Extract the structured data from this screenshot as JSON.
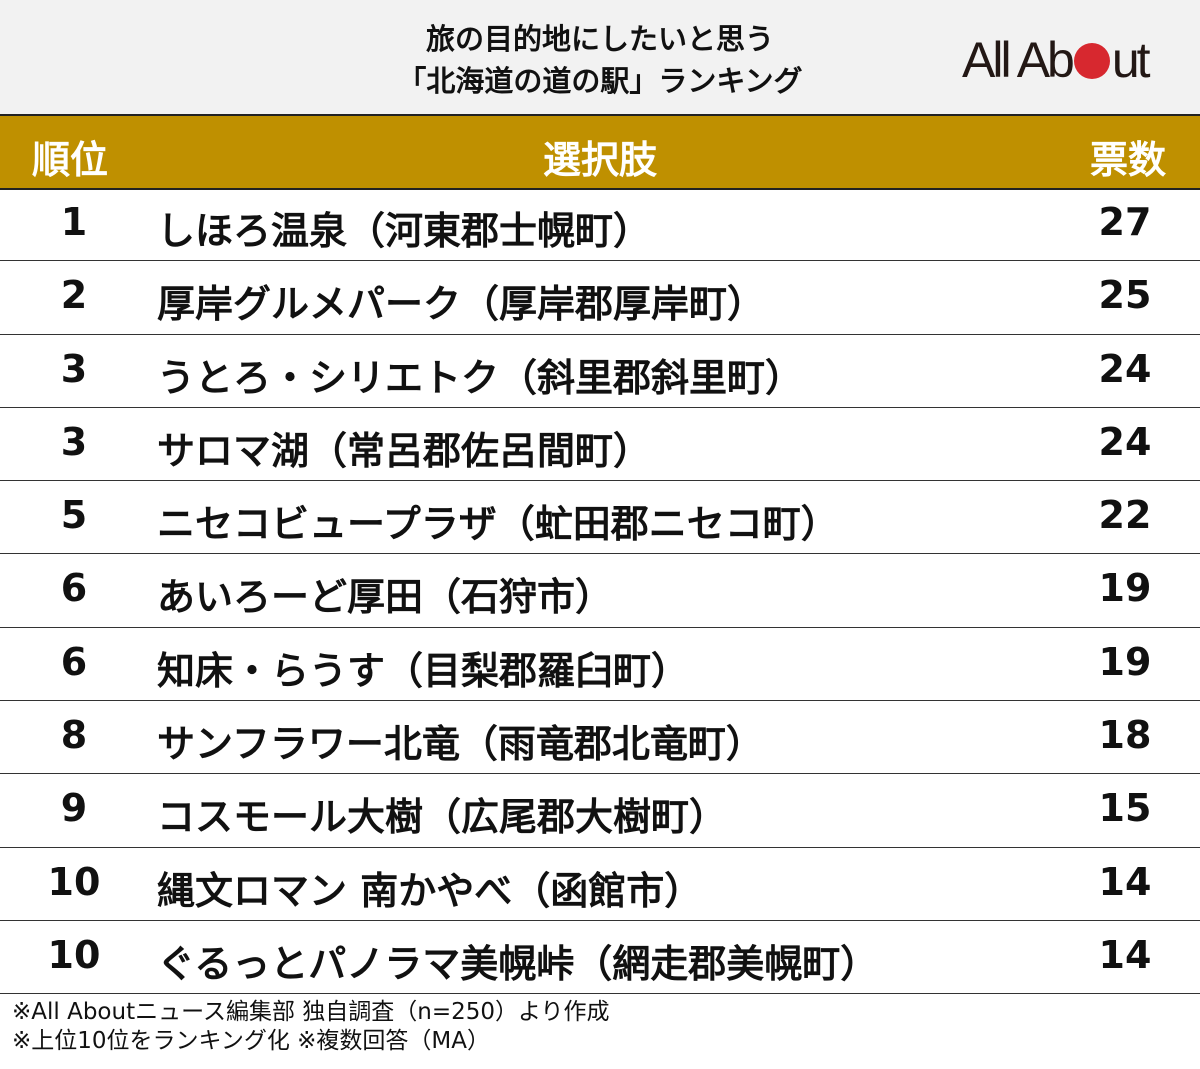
{
  "header": {
    "title_line1": "旅の目的地にしたいと思う",
    "title_line2": "「北海道の道の駅」ランキング",
    "logo_text_left": "All Ab",
    "logo_text_right": "ut",
    "logo": "All About"
  },
  "colors": {
    "header_band": "#bf9000",
    "logo_dot": "#d7282f",
    "top_bg": "#f2f2f2"
  },
  "chart_data": {
    "type": "table",
    "columns": [
      "順位",
      "選択肢",
      "票数"
    ],
    "rows": [
      {
        "rank": "1",
        "name": "しほろ温泉（河東郡士幌町）",
        "votes": "27"
      },
      {
        "rank": "2",
        "name": "厚岸グルメパーク（厚岸郡厚岸町）",
        "votes": "25"
      },
      {
        "rank": "3",
        "name": "うとろ・シリエトク（斜里郡斜里町）",
        "votes": "24"
      },
      {
        "rank": "3",
        "name": "サロマ湖（常呂郡佐呂間町）",
        "votes": "24"
      },
      {
        "rank": "5",
        "name": "ニセコビュープラザ（虻田郡ニセコ町）",
        "votes": "22"
      },
      {
        "rank": "6",
        "name": "あいろーど厚田（石狩市）",
        "votes": "19"
      },
      {
        "rank": "6",
        "name": "知床・らうす（目梨郡羅臼町）",
        "votes": "19"
      },
      {
        "rank": "8",
        "name": "サンフラワー北竜（雨竜郡北竜町）",
        "votes": "18"
      },
      {
        "rank": "9",
        "name": "コスモール大樹（広尾郡大樹町）",
        "votes": "15"
      },
      {
        "rank": "10",
        "name": "縄文ロマン 南かやべ（函館市）",
        "votes": "14"
      },
      {
        "rank": "10",
        "name": "ぐるっとパノラマ美幌峠（網走郡美幌町）",
        "votes": "14"
      }
    ]
  },
  "footer": {
    "note1": "※All Aboutニュース編集部 独自調査（n=250）より作成",
    "note2": "※上位10位をランキング化 ※複数回答（MA）"
  }
}
